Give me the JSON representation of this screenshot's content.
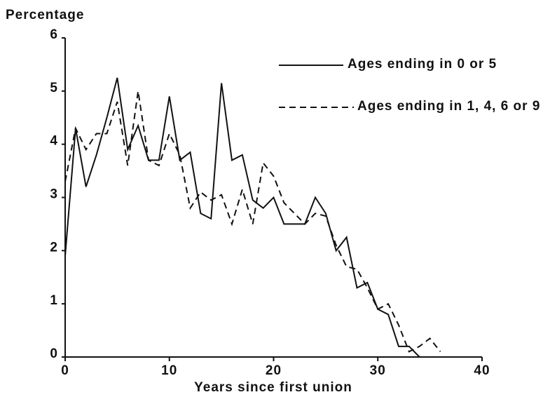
{
  "chart_data": {
    "type": "line",
    "y_label": "Percentage",
    "x_label": "Years since first union",
    "xlim": [
      0,
      40
    ],
    "xticks": [
      0,
      10,
      20,
      30,
      40
    ],
    "ylim": [
      0,
      6
    ],
    "yticks": [
      0,
      1,
      2,
      3,
      4,
      5,
      6
    ],
    "series": [
      {
        "name": "Ages ending in 0 or 5",
        "color": "#111111",
        "dash": "solid",
        "x": [
          0,
          1,
          2,
          3,
          4,
          5,
          6,
          7,
          8,
          9,
          10,
          11,
          12,
          13,
          14,
          15,
          16,
          17,
          18,
          19,
          20,
          21,
          22,
          23,
          24,
          25,
          26,
          27,
          28,
          29,
          30,
          31,
          32,
          33,
          34
        ],
        "values": [
          1.9,
          4.3,
          3.2,
          3.8,
          4.5,
          5.25,
          3.9,
          4.35,
          3.7,
          3.7,
          4.9,
          3.7,
          3.85,
          2.7,
          2.6,
          5.15,
          3.7,
          3.8,
          2.95,
          2.8,
          3.0,
          2.5,
          2.5,
          2.5,
          3.0,
          2.7,
          2.0,
          2.25,
          1.3,
          1.4,
          0.9,
          0.8,
          0.2,
          0.2,
          0.0
        ]
      },
      {
        "name": "Ages ending in 1, 4, 6 or 9",
        "color": "#111111",
        "dash": "dashed",
        "x": [
          0,
          1,
          2,
          3,
          4,
          5,
          6,
          7,
          8,
          9,
          10,
          11,
          12,
          13,
          14,
          15,
          16,
          17,
          18,
          19,
          20,
          21,
          22,
          23,
          24,
          25,
          26,
          27,
          28,
          29,
          30,
          31,
          32,
          33,
          34,
          35,
          36
        ],
        "values": [
          3.3,
          4.3,
          3.9,
          4.2,
          4.2,
          4.8,
          3.6,
          5.0,
          3.7,
          3.6,
          4.2,
          3.8,
          2.8,
          3.1,
          2.95,
          3.05,
          2.5,
          3.15,
          2.5,
          3.65,
          3.4,
          2.9,
          2.7,
          2.5,
          2.7,
          2.65,
          2.1,
          1.7,
          1.65,
          1.3,
          0.9,
          1.0,
          0.6,
          0.1,
          0.2,
          0.35,
          0.1
        ]
      }
    ]
  }
}
